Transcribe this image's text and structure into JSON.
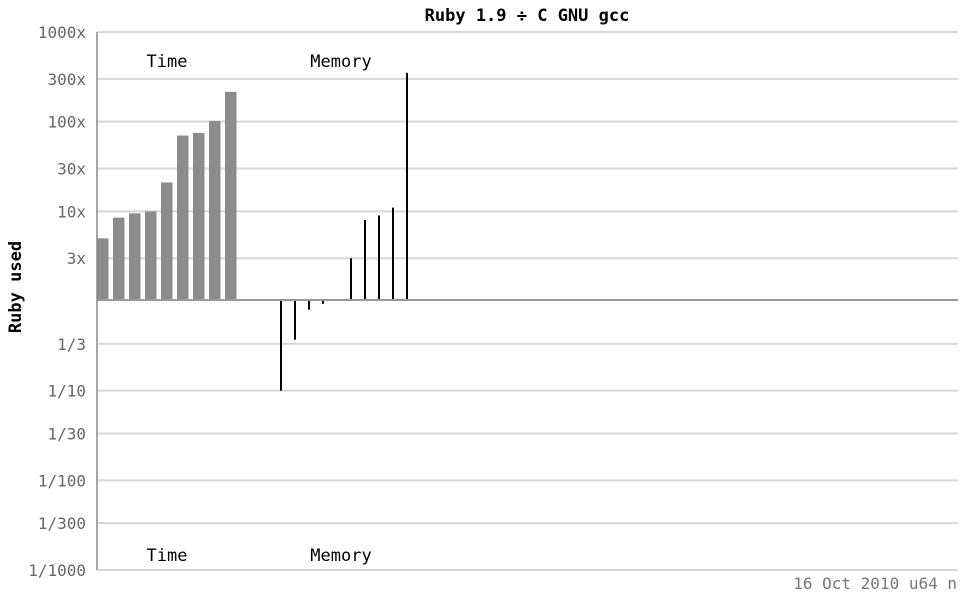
{
  "chart_data": {
    "type": "bar",
    "title": "Ruby 1.9 ÷ C GNU gcc",
    "ylabel": "Ruby used",
    "yscale": "log",
    "ylim": [
      0.001,
      1000
    ],
    "y_ticks": [
      {
        "value": 1000,
        "label": "1000x"
      },
      {
        "value": 300,
        "label": "300x"
      },
      {
        "value": 100,
        "label": "100x"
      },
      {
        "value": 30,
        "label": "30x"
      },
      {
        "value": 10,
        "label": "10x"
      },
      {
        "value": 3,
        "label": "3x"
      },
      {
        "value": 0.333,
        "label": "1/3"
      },
      {
        "value": 0.1,
        "label": "1/10"
      },
      {
        "value": 0.0333,
        "label": "1/30"
      },
      {
        "value": 0.01,
        "label": "1/100"
      },
      {
        "value": 0.00333,
        "label": "1/300"
      },
      {
        "value": 0.001,
        "label": "1/1000"
      }
    ],
    "groups": [
      {
        "label": "Time",
        "style": "bar",
        "values": [
          5,
          8.5,
          9.5,
          10,
          21,
          70,
          75,
          102,
          215
        ]
      },
      {
        "label": "Memory",
        "style": "line",
        "values": [
          0.1,
          0.37,
          0.8,
          0.93,
          1,
          3,
          8,
          9,
          11,
          350
        ]
      }
    ],
    "footer": "16 Oct 2010 u64 n"
  }
}
